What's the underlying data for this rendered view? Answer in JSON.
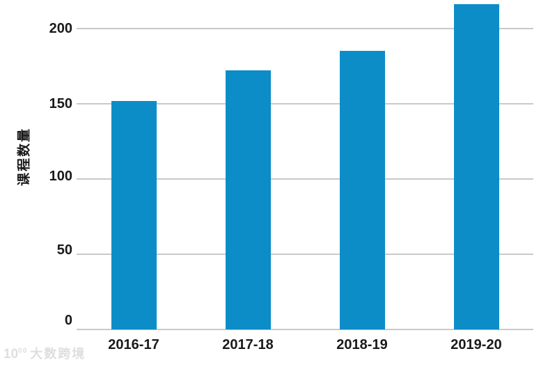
{
  "chart_data": {
    "type": "bar",
    "title": "",
    "categories": [
      "2016-17",
      "2017-18",
      "2018-19",
      "2019-20"
    ],
    "values": [
      152,
      172,
      185,
      216
    ],
    "xlabel": "",
    "ylabel": "课程数量",
    "ylim": [
      0,
      220
    ],
    "yticks": [
      0,
      50,
      100,
      150,
      200
    ],
    "grid": true,
    "legend": "none",
    "colors": {
      "bar": "#0c8dc8",
      "gridline": "#c9c9c9",
      "text": "#1a1a1a",
      "background": "#ffffff"
    }
  },
  "watermark": {
    "logo_main": "10",
    "logo_sup": "00",
    "text": "大数跨境",
    "color": "#dedede"
  }
}
